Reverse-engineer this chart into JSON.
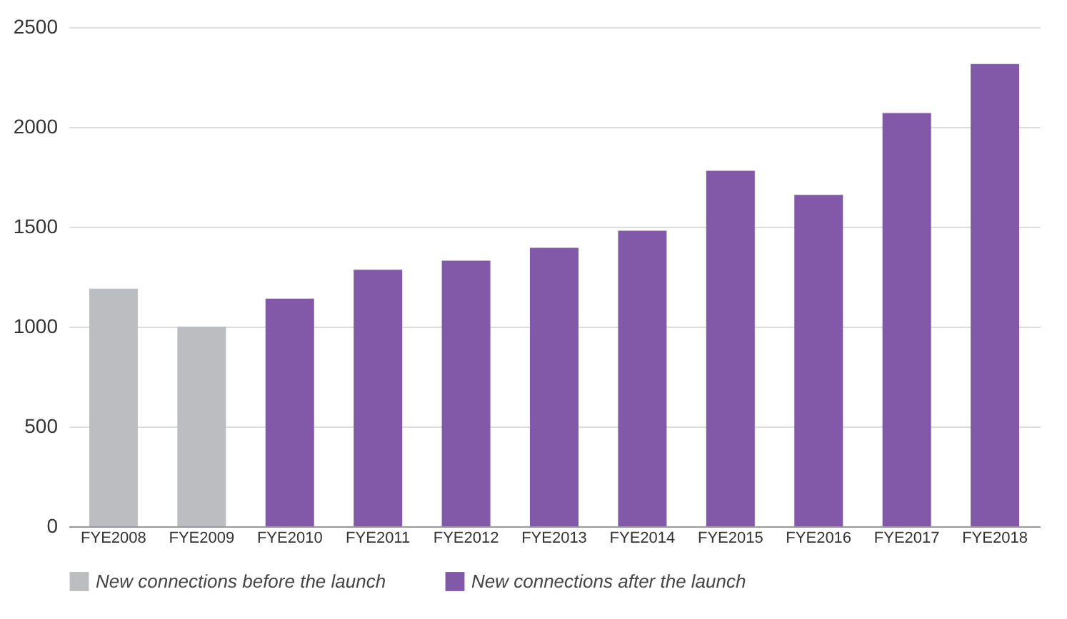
{
  "chart_data": {
    "type": "bar",
    "categories": [
      "FYE2008",
      "FYE2009",
      "FYE2010",
      "FYE2011",
      "FYE2012",
      "FYE2013",
      "FYE2014",
      "FYE2015",
      "FYE2016",
      "FYE2017",
      "FYE2018"
    ],
    "series": [
      {
        "name": "New connections before the launch",
        "color": "#bcbdc0",
        "values": [
          1190,
          1000,
          null,
          null,
          null,
          null,
          null,
          null,
          null,
          null,
          null
        ]
      },
      {
        "name": "New connections after the launch",
        "color": "#8159a8",
        "values": [
          null,
          null,
          1140,
          1285,
          1330,
          1395,
          1480,
          1780,
          1660,
          2070,
          2315
        ]
      }
    ],
    "ylim": [
      0,
      2500
    ],
    "yticks": [
      0,
      500,
      1000,
      1500,
      2000,
      2500
    ],
    "grid": "y",
    "legend": "bottom"
  }
}
